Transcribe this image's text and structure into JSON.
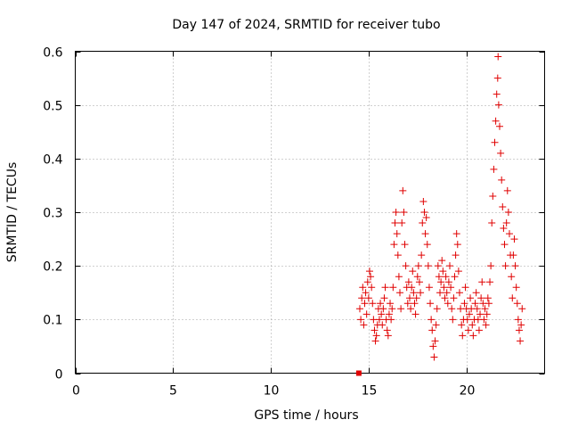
{
  "chart_data": {
    "type": "scatter",
    "title": "Day 147 of 2024, SRMTID for receiver tubo",
    "xlabel": "GPS time / hours",
    "ylabel": "SRMTID / TECUs",
    "xlim": [
      0,
      24
    ],
    "ylim": [
      0,
      0.6
    ],
    "x_ticks": [
      0,
      5,
      10,
      15,
      20
    ],
    "x_tick_labels": [
      "0",
      "5",
      "10",
      "15",
      "20"
    ],
    "y_ticks": [
      0,
      0.1,
      0.2,
      0.3,
      0.4,
      0.5,
      0.6
    ],
    "y_tick_labels": [
      "0",
      "0.1",
      "0.2",
      "0.3",
      "0.4",
      "0.5",
      "0.6"
    ],
    "grid": true,
    "marker": "+",
    "marker_color": "#e00000",
    "series": [
      {
        "name": "SRMTID",
        "points": [
          [
            14.5,
            0.0
          ],
          [
            14.55,
            0.12
          ],
          [
            14.6,
            0.1
          ],
          [
            14.65,
            0.14
          ],
          [
            14.7,
            0.16
          ],
          [
            14.75,
            0.09
          ],
          [
            14.8,
            0.13
          ],
          [
            14.85,
            0.15
          ],
          [
            14.9,
            0.11
          ],
          [
            14.95,
            0.17
          ],
          [
            15.0,
            0.14
          ],
          [
            15.05,
            0.19
          ],
          [
            15.1,
            0.18
          ],
          [
            15.15,
            0.16
          ],
          [
            15.2,
            0.13
          ],
          [
            15.25,
            0.1
          ],
          [
            15.3,
            0.08
          ],
          [
            15.35,
            0.06
          ],
          [
            15.4,
            0.07
          ],
          [
            15.45,
            0.09
          ],
          [
            15.5,
            0.12
          ],
          [
            15.55,
            0.1
          ],
          [
            15.6,
            0.13
          ],
          [
            15.65,
            0.11
          ],
          [
            15.7,
            0.09
          ],
          [
            15.75,
            0.12
          ],
          [
            15.8,
            0.14
          ],
          [
            15.85,
            0.16
          ],
          [
            15.9,
            0.1
          ],
          [
            15.95,
            0.08
          ],
          [
            16.0,
            0.07
          ],
          [
            16.05,
            0.11
          ],
          [
            16.1,
            0.13
          ],
          [
            16.15,
            0.1
          ],
          [
            16.2,
            0.12
          ],
          [
            16.25,
            0.16
          ],
          [
            16.3,
            0.24
          ],
          [
            16.35,
            0.28
          ],
          [
            16.4,
            0.3
          ],
          [
            16.45,
            0.26
          ],
          [
            16.5,
            0.22
          ],
          [
            16.55,
            0.18
          ],
          [
            16.6,
            0.15
          ],
          [
            16.65,
            0.12
          ],
          [
            16.7,
            0.28
          ],
          [
            16.75,
            0.34
          ],
          [
            16.8,
            0.3
          ],
          [
            16.85,
            0.24
          ],
          [
            16.9,
            0.2
          ],
          [
            16.95,
            0.16
          ],
          [
            17.0,
            0.13
          ],
          [
            17.05,
            0.17
          ],
          [
            17.1,
            0.14
          ],
          [
            17.15,
            0.12
          ],
          [
            17.2,
            0.16
          ],
          [
            17.25,
            0.19
          ],
          [
            17.3,
            0.15
          ],
          [
            17.35,
            0.13
          ],
          [
            17.4,
            0.11
          ],
          [
            17.45,
            0.14
          ],
          [
            17.5,
            0.18
          ],
          [
            17.55,
            0.2
          ],
          [
            17.6,
            0.17
          ],
          [
            17.65,
            0.15
          ],
          [
            17.7,
            0.22
          ],
          [
            17.75,
            0.28
          ],
          [
            17.8,
            0.32
          ],
          [
            17.85,
            0.3
          ],
          [
            17.9,
            0.26
          ],
          [
            17.95,
            0.29
          ],
          [
            18.0,
            0.24
          ],
          [
            18.05,
            0.2
          ],
          [
            18.1,
            0.16
          ],
          [
            18.15,
            0.13
          ],
          [
            18.2,
            0.1
          ],
          [
            18.25,
            0.08
          ],
          [
            18.3,
            0.05
          ],
          [
            18.35,
            0.03
          ],
          [
            18.4,
            0.06
          ],
          [
            18.45,
            0.09
          ],
          [
            18.5,
            0.12
          ],
          [
            18.55,
            0.2
          ],
          [
            18.6,
            0.18
          ],
          [
            18.65,
            0.15
          ],
          [
            18.7,
            0.17
          ],
          [
            18.75,
            0.21
          ],
          [
            18.8,
            0.19
          ],
          [
            18.85,
            0.16
          ],
          [
            18.9,
            0.14
          ],
          [
            18.95,
            0.18
          ],
          [
            19.0,
            0.15
          ],
          [
            19.05,
            0.13
          ],
          [
            19.1,
            0.17
          ],
          [
            19.15,
            0.2
          ],
          [
            19.2,
            0.16
          ],
          [
            19.25,
            0.12
          ],
          [
            19.3,
            0.1
          ],
          [
            19.35,
            0.14
          ],
          [
            19.4,
            0.18
          ],
          [
            19.45,
            0.22
          ],
          [
            19.5,
            0.26
          ],
          [
            19.55,
            0.24
          ],
          [
            19.6,
            0.19
          ],
          [
            19.65,
            0.15
          ],
          [
            19.7,
            0.12
          ],
          [
            19.75,
            0.09
          ],
          [
            19.8,
            0.07
          ],
          [
            19.85,
            0.1
          ],
          [
            19.9,
            0.13
          ],
          [
            19.95,
            0.16
          ],
          [
            20.0,
            0.12
          ],
          [
            20.05,
            0.1
          ],
          [
            20.1,
            0.08
          ],
          [
            20.15,
            0.11
          ],
          [
            20.2,
            0.14
          ],
          [
            20.25,
            0.12
          ],
          [
            20.3,
            0.09
          ],
          [
            20.35,
            0.07
          ],
          [
            20.4,
            0.1
          ],
          [
            20.45,
            0.13
          ],
          [
            20.5,
            0.15
          ],
          [
            20.55,
            0.12
          ],
          [
            20.6,
            0.1
          ],
          [
            20.65,
            0.08
          ],
          [
            20.7,
            0.11
          ],
          [
            20.75,
            0.14
          ],
          [
            20.8,
            0.17
          ],
          [
            20.85,
            0.13
          ],
          [
            20.9,
            0.1
          ],
          [
            20.95,
            0.12
          ],
          [
            21.0,
            0.09
          ],
          [
            21.05,
            0.11
          ],
          [
            21.1,
            0.14
          ],
          [
            21.15,
            0.13
          ],
          [
            21.2,
            0.17
          ],
          [
            21.25,
            0.2
          ],
          [
            21.3,
            0.28
          ],
          [
            21.35,
            0.33
          ],
          [
            21.4,
            0.38
          ],
          [
            21.45,
            0.43
          ],
          [
            21.5,
            0.47
          ],
          [
            21.55,
            0.52
          ],
          [
            21.6,
            0.55
          ],
          [
            21.62,
            0.59
          ],
          [
            21.65,
            0.5
          ],
          [
            21.7,
            0.46
          ],
          [
            21.75,
            0.41
          ],
          [
            21.8,
            0.36
          ],
          [
            21.85,
            0.31
          ],
          [
            21.9,
            0.27
          ],
          [
            21.95,
            0.24
          ],
          [
            22.0,
            0.2
          ],
          [
            22.05,
            0.28
          ],
          [
            22.1,
            0.34
          ],
          [
            22.15,
            0.3
          ],
          [
            22.2,
            0.26
          ],
          [
            22.25,
            0.22
          ],
          [
            22.3,
            0.18
          ],
          [
            22.35,
            0.14
          ],
          [
            22.4,
            0.22
          ],
          [
            22.45,
            0.25
          ],
          [
            22.5,
            0.2
          ],
          [
            22.55,
            0.16
          ],
          [
            22.6,
            0.13
          ],
          [
            22.65,
            0.1
          ],
          [
            22.7,
            0.08
          ],
          [
            22.75,
            0.06
          ],
          [
            22.8,
            0.09
          ],
          [
            22.85,
            0.12
          ]
        ]
      }
    ]
  }
}
